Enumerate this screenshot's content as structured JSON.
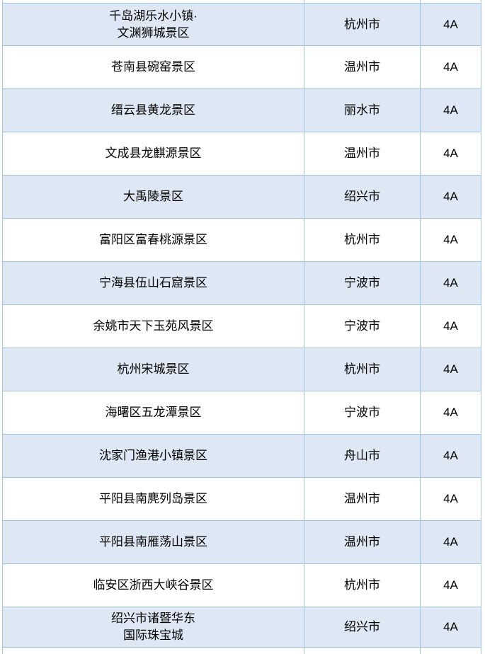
{
  "colors": {
    "row_shaded_bg": "#dde8f4",
    "row_plain_bg": "#ffffff",
    "border": "#9fc4e0",
    "text": "#000000"
  },
  "table": {
    "rows": [
      {
        "name": "千岛湖乐水小镇·\n文渊狮城景区",
        "city": "杭州市",
        "grade": "4A"
      },
      {
        "name": "苍南县碗窑景区",
        "city": "温州市",
        "grade": "4A"
      },
      {
        "name": "缙云县黄龙景区",
        "city": "丽水市",
        "grade": "4A"
      },
      {
        "name": "文成县龙麒源景区",
        "city": "温州市",
        "grade": "4A"
      },
      {
        "name": "大禹陵景区",
        "city": "绍兴市",
        "grade": "4A"
      },
      {
        "name": "富阳区富春桃源景区",
        "city": "杭州市",
        "grade": "4A"
      },
      {
        "name": "宁海县伍山石窟景区",
        "city": "宁波市",
        "grade": "4A"
      },
      {
        "name": "余姚市天下玉苑风景区",
        "city": "宁波市",
        "grade": "4A"
      },
      {
        "name": "杭州宋城景区",
        "city": "杭州市",
        "grade": "4A"
      },
      {
        "name": "海曙区五龙潭景区",
        "city": "宁波市",
        "grade": "4A"
      },
      {
        "name": "沈家门渔港小镇景区",
        "city": "舟山市",
        "grade": "4A"
      },
      {
        "name": "平阳县南麂列岛景区",
        "city": "温州市",
        "grade": "4A"
      },
      {
        "name": "平阳县南雁荡山景区",
        "city": "温州市",
        "grade": "4A"
      },
      {
        "name": "临安区浙西大峡谷景区",
        "city": "杭州市",
        "grade": "4A"
      },
      {
        "name": "绍兴市诸暨华东\n国际珠宝城",
        "city": "绍兴市",
        "grade": "4A"
      }
    ]
  }
}
